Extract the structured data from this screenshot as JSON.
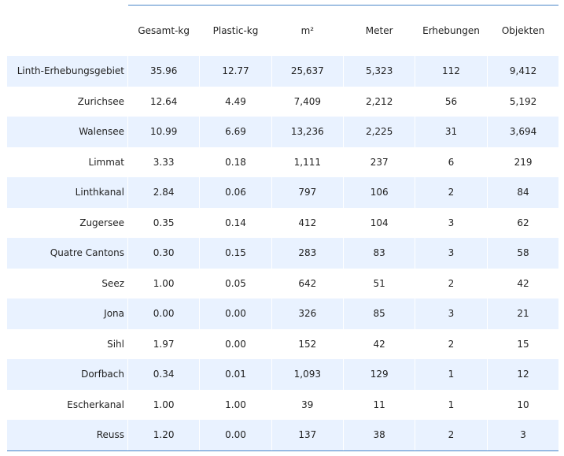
{
  "chart_data": {
    "type": "table",
    "columns": [
      "Gesamt-kg",
      "Plastic-kg",
      "m²",
      "Meter",
      "Erhebungen",
      "Objekten"
    ],
    "rows": [
      {
        "label": "Linth-Erhebungsgebiet",
        "values": [
          "35.96",
          "12.77",
          "25,637",
          "5,323",
          "112",
          "9,412"
        ]
      },
      {
        "label": "Zurichsee",
        "values": [
          "12.64",
          "4.49",
          "7,409",
          "2,212",
          "56",
          "5,192"
        ]
      },
      {
        "label": "Walensee",
        "values": [
          "10.99",
          "6.69",
          "13,236",
          "2,225",
          "31",
          "3,694"
        ]
      },
      {
        "label": "Limmat",
        "values": [
          "3.33",
          "0.18",
          "1,111",
          "237",
          "6",
          "219"
        ]
      },
      {
        "label": "Linthkanal",
        "values": [
          "2.84",
          "0.06",
          "797",
          "106",
          "2",
          "84"
        ]
      },
      {
        "label": "Zugersee",
        "values": [
          "0.35",
          "0.14",
          "412",
          "104",
          "3",
          "62"
        ]
      },
      {
        "label": "Quatre Cantons",
        "values": [
          "0.30",
          "0.15",
          "283",
          "83",
          "3",
          "58"
        ]
      },
      {
        "label": "Seez",
        "values": [
          "1.00",
          "0.05",
          "642",
          "51",
          "2",
          "42"
        ]
      },
      {
        "label": "Jona",
        "values": [
          "0.00",
          "0.00",
          "326",
          "85",
          "3",
          "21"
        ]
      },
      {
        "label": "Sihl",
        "values": [
          "1.97",
          "0.00",
          "152",
          "42",
          "2",
          "15"
        ]
      },
      {
        "label": "Dorfbach",
        "values": [
          "0.34",
          "0.01",
          "1,093",
          "129",
          "1",
          "12"
        ]
      },
      {
        "label": "Escherkanal",
        "values": [
          "1.00",
          "1.00",
          "39",
          "11",
          "1",
          "10"
        ]
      },
      {
        "label": "Reuss",
        "values": [
          "1.20",
          "0.00",
          "137",
          "38",
          "2",
          "3"
        ]
      }
    ],
    "colors": {
      "band": "#e9f2ff",
      "rule": "#4a86c8"
    }
  }
}
